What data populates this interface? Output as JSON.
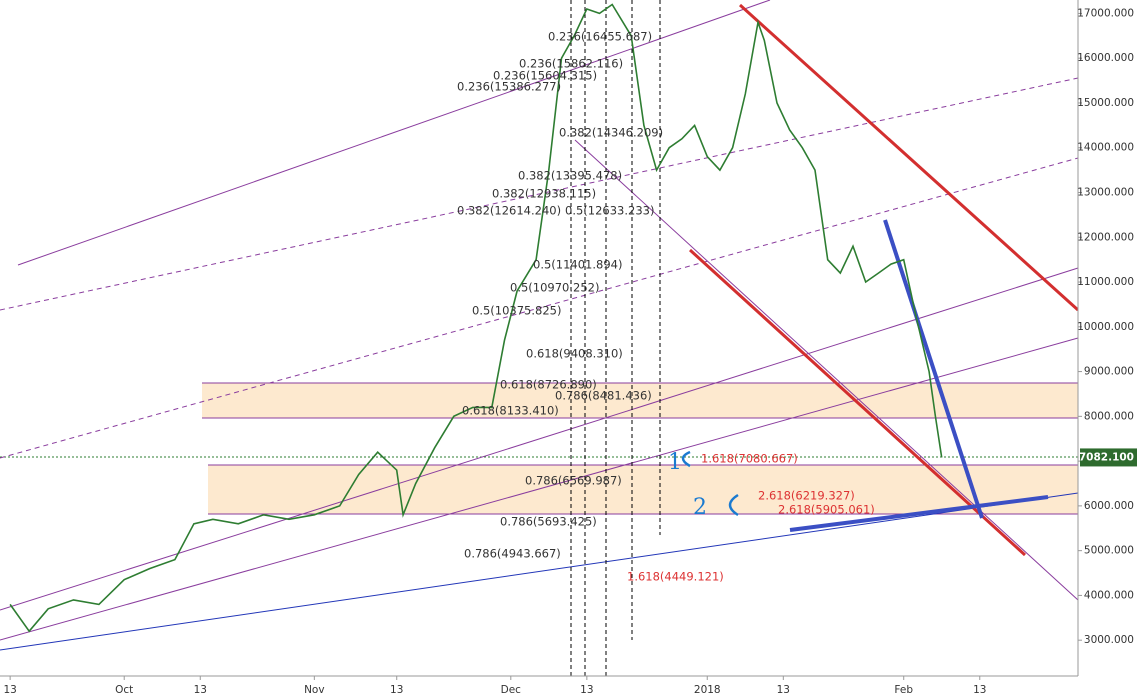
{
  "chart_data": {
    "type": "line",
    "x": [
      0,
      3,
      6,
      10,
      14,
      18,
      22,
      26,
      29,
      32,
      36,
      40,
      44,
      48,
      52,
      55,
      58,
      61,
      62,
      64,
      67,
      70,
      73,
      76,
      78,
      80,
      83,
      85,
      87,
      89,
      91,
      93,
      95,
      98,
      100,
      102,
      104,
      106,
      108,
      110,
      112,
      114,
      116,
      118,
      119,
      121,
      123,
      125,
      127,
      129,
      131,
      133,
      135,
      137,
      139,
      141,
      143,
      145,
      146,
      147
    ],
    "series": [
      {
        "color": "#2e7d32",
        "values": [
          3800,
          3200,
          3700,
          3900,
          3800,
          4350,
          4600,
          4800,
          5600,
          5700,
          5600,
          5800,
          5700,
          5800,
          6000,
          6700,
          7200,
          6800,
          5800,
          6500,
          7300,
          8000,
          8200,
          8200,
          9700,
          10800,
          11500,
          13500,
          16000,
          16500,
          17100,
          17000,
          17200,
          16500,
          14500,
          13500,
          14000,
          14200,
          14500,
          13800,
          13500,
          14000,
          15200,
          16800,
          16400,
          15000,
          14400,
          14000,
          13500,
          11500,
          11200,
          11800,
          11000,
          11200,
          11400,
          11500,
          10200,
          9000,
          8000,
          7080
        ]
      }
    ],
    "xlim": [
      -1.6,
      168.5
    ],
    "ylim": [
      2200,
      17300
    ],
    "xticks": [
      {
        "value": 0,
        "label": "13"
      },
      {
        "value": 18,
        "label": "Oct"
      },
      {
        "value": 30,
        "label": "13"
      },
      {
        "value": 48,
        "label": "Nov"
      },
      {
        "value": 61,
        "label": "13"
      },
      {
        "value": 79,
        "label": "Dec"
      },
      {
        "value": 91,
        "label": "13"
      },
      {
        "value": 110,
        "label": "2018"
      },
      {
        "value": 122,
        "label": "13"
      },
      {
        "value": 141,
        "label": "Feb"
      },
      {
        "value": 153,
        "label": "13"
      }
    ],
    "yticks": [
      {
        "value": 3000,
        "label": "3000.000"
      },
      {
        "value": 4000,
        "label": "4000.000"
      },
      {
        "value": 5000,
        "label": "5000.000"
      },
      {
        "value": 6000,
        "label": "6000.000"
      },
      {
        "value": 7000,
        "label": "7000.000"
      },
      {
        "value": 8000,
        "label": "8000.000"
      },
      {
        "value": 9000,
        "label": "9000.000"
      },
      {
        "value": 10000,
        "label": "10000.000"
      },
      {
        "value": 11000,
        "label": "11000.000"
      },
      {
        "value": 12000,
        "label": "12000.000"
      },
      {
        "value": 13000,
        "label": "13000.000"
      },
      {
        "value": 14000,
        "label": "14000.000"
      },
      {
        "value": 15000,
        "label": "15000.000"
      },
      {
        "value": 16000,
        "label": "16000.000"
      },
      {
        "value": 17000,
        "label": "17000.000"
      }
    ],
    "last_price": {
      "value": 7082.1,
      "label": "7082.100"
    },
    "annotations": [
      "0.236(16455.687)",
      "0.236(15862.116)",
      "0.236(15604.315)",
      "0.236(15386.277)",
      "0.382(14346.209)",
      "0.382(13395.478)",
      "0.382(12938.115)",
      "0.382(12614.240)",
      "0.5(12633.233)",
      "0.5(11401.894)",
      "0.5(10970.252)",
      "0.5(10375.825)",
      "0.618(9408.310)",
      "0.618(8726.890)",
      "0.786(8481.436)",
      "0.618(8133.410)",
      "1.618(7080.667)",
      "0.786(6569.987)",
      "2.618(6219.327)",
      "2.618(5905.061)",
      "0.786(5693.425)",
      "0.786(4943.667)",
      "1.618(4449.121)"
    ],
    "handwriting": [
      "1",
      "2"
    ]
  }
}
